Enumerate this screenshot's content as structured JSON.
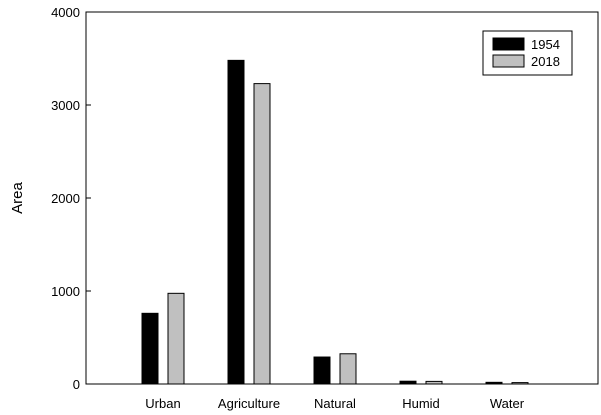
{
  "chart_data": {
    "type": "bar",
    "title": "",
    "xlabel": "",
    "ylabel": "Area",
    "ylim": [
      0,
      4000
    ],
    "yticks": [
      "0",
      "1000",
      "2000",
      "3000",
      "4000"
    ],
    "categories": [
      "Urban",
      "Agriculture",
      "Natural",
      "Humid",
      "Water"
    ],
    "series": [
      {
        "name": "1954",
        "color": "#000000",
        "values": [
          760,
          3480,
          290,
          30,
          18
        ]
      },
      {
        "name": "2018",
        "color": "#c0c0c0",
        "values": [
          975,
          3230,
          325,
          28,
          15
        ]
      }
    ],
    "legend": {
      "position": "top-right"
    },
    "grid": false
  }
}
